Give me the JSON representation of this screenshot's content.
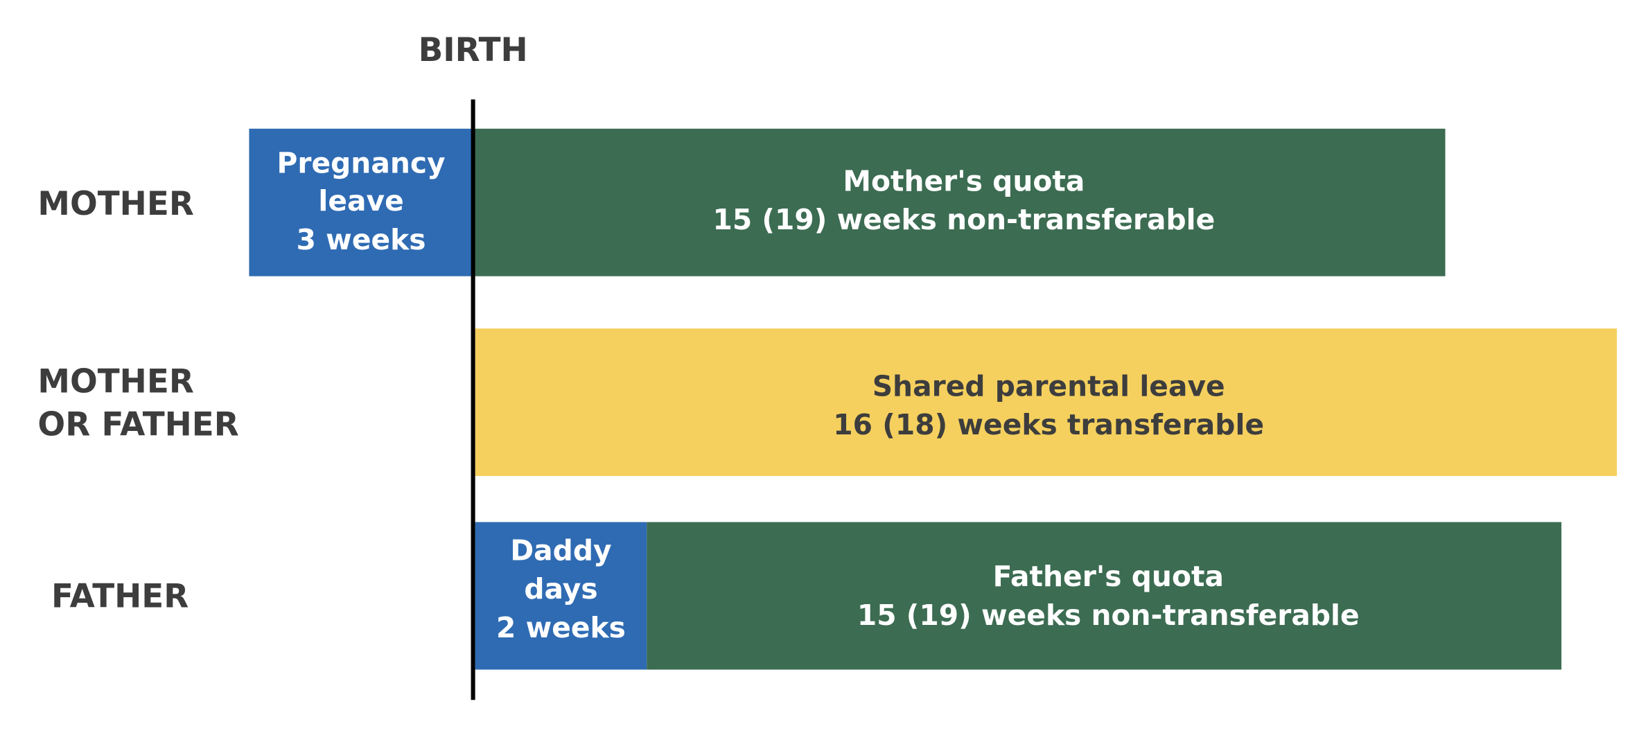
{
  "birth_label": "BIRTH",
  "rows": [
    {
      "label": [
        "MOTHER"
      ],
      "blocks": [
        {
          "lines": [
            "Pregnancy",
            "leave",
            "3 weeks"
          ]
        },
        {
          "lines": [
            "Mother's quota",
            "15 (19) weeks non-transferable"
          ]
        }
      ]
    },
    {
      "label": [
        "MOTHER",
        "OR FATHER"
      ],
      "blocks": [
        {
          "lines": [
            "Shared parental leave",
            "16 (18) weeks transferable"
          ]
        }
      ]
    },
    {
      "label": [
        "FATHER"
      ],
      "blocks": [
        {
          "lines": [
            "Daddy",
            "days",
            "2 weeks"
          ]
        },
        {
          "lines": [
            "Father's quota",
            "15 (19) weeks non-transferable"
          ]
        }
      ]
    }
  ]
}
